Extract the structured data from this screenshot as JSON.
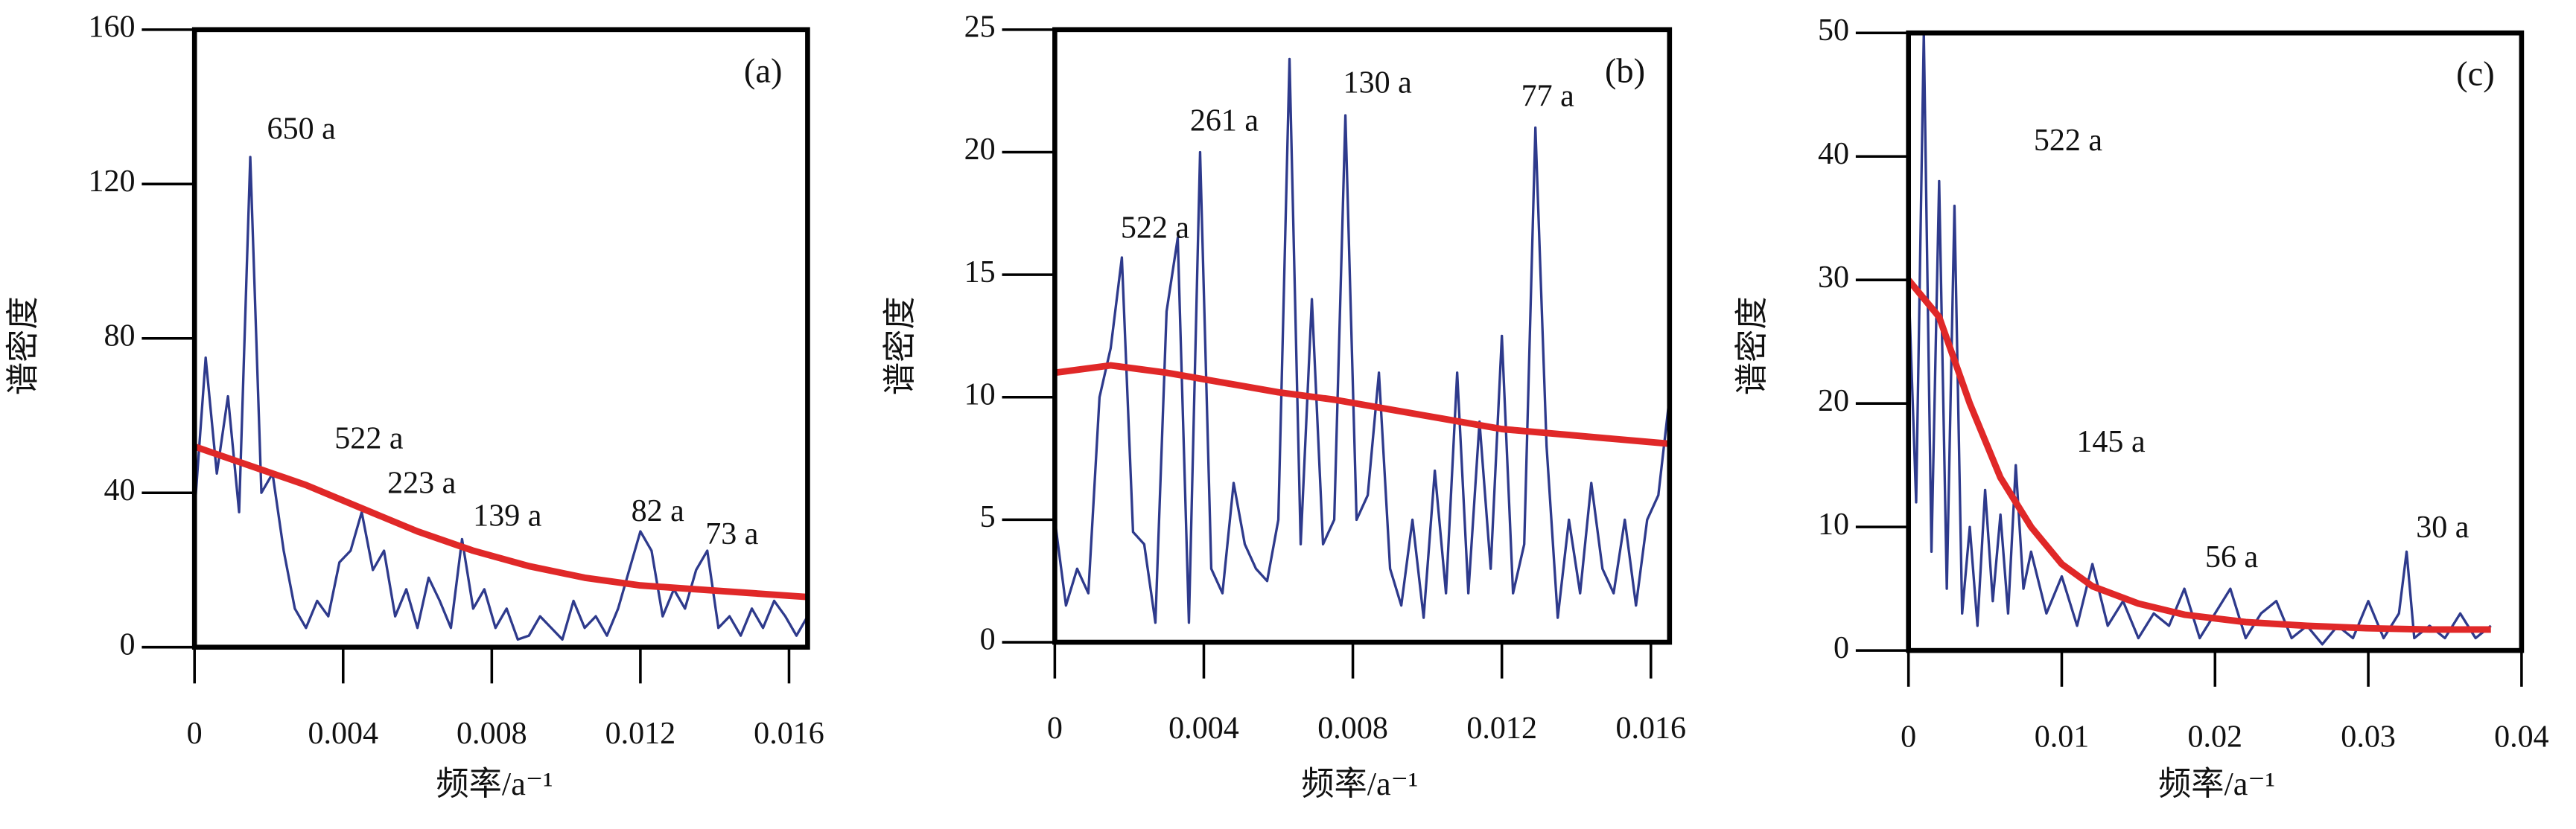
{
  "chart_data": [
    {
      "type": "line",
      "panel_label": "(a)",
      "xlabel": "频率/a⁻¹",
      "ylabel": "谱密度",
      "xlim": [
        0,
        0.0165
      ],
      "xticks": [
        0,
        0.004,
        0.008,
        0.012,
        0.016
      ],
      "ylim": [
        0,
        160
      ],
      "yticks": [
        0,
        40,
        80,
        120,
        160
      ],
      "annotations": [
        "650 a",
        "522 a",
        "223 a",
        "139 a",
        "82 a",
        "73 a"
      ],
      "series": [
        {
          "color": "#2e3a8c",
          "x": [
            0,
            0.0003,
            0.0006,
            0.0009,
            0.0012,
            0.0015,
            0.0018,
            0.0021,
            0.0024,
            0.0027,
            0.003,
            0.0033,
            0.0036,
            0.0039,
            0.0042,
            0.0045,
            0.0048,
            0.0051,
            0.0054,
            0.0057,
            0.006,
            0.0063,
            0.0066,
            0.0069,
            0.0072,
            0.0075,
            0.0078,
            0.0081,
            0.0084,
            0.0087,
            0.009,
            0.0093,
            0.0096,
            0.0099,
            0.0102,
            0.0105,
            0.0108,
            0.0111,
            0.0114,
            0.0117,
            0.012,
            0.0123,
            0.0126,
            0.0129,
            0.0132,
            0.0135,
            0.0138,
            0.0141,
            0.0144,
            0.0147,
            0.015,
            0.0153,
            0.0156,
            0.0159,
            0.0162,
            0.0165
          ],
          "values": [
            35,
            75,
            45,
            65,
            35,
            127,
            40,
            45,
            25,
            10,
            5,
            12,
            8,
            22,
            25,
            35,
            20,
            25,
            8,
            15,
            5,
            18,
            12,
            5,
            28,
            10,
            15,
            5,
            10,
            2,
            3,
            8,
            5,
            2,
            12,
            5,
            8,
            3,
            10,
            20,
            30,
            25,
            8,
            15,
            10,
            20,
            25,
            5,
            8,
            3,
            10,
            5,
            12,
            8,
            3,
            8
          ]
        },
        {
          "color": "#e02828",
          "x": [
            0,
            0.0015,
            0.003,
            0.0045,
            0.006,
            0.0075,
            0.009,
            0.0105,
            0.012,
            0.0135,
            0.015,
            0.0165
          ],
          "values": [
            52,
            47,
            42,
            36,
            30,
            25,
            21,
            18,
            16,
            15,
            14,
            13
          ]
        }
      ]
    },
    {
      "type": "line",
      "panel_label": "(b)",
      "xlabel": "频率/a⁻¹",
      "ylabel": "谱密度",
      "xlim": [
        0,
        0.0165
      ],
      "xticks": [
        0,
        0.004,
        0.008,
        0.012,
        0.016
      ],
      "ylim": [
        0,
        25
      ],
      "yticks": [
        0,
        5,
        10,
        15,
        20,
        25
      ],
      "annotations": [
        "522 a",
        "261 a",
        "130 a",
        "77 a"
      ],
      "series": [
        {
          "color": "#2e3a8c",
          "x": [
            0,
            0.0003,
            0.0006,
            0.0009,
            0.0012,
            0.0015,
            0.0018,
            0.0021,
            0.0024,
            0.0027,
            0.003,
            0.0033,
            0.0036,
            0.0039,
            0.0042,
            0.0045,
            0.0048,
            0.0051,
            0.0054,
            0.0057,
            0.006,
            0.0063,
            0.0066,
            0.0069,
            0.0072,
            0.0075,
            0.0078,
            0.0081,
            0.0084,
            0.0087,
            0.009,
            0.0093,
            0.0096,
            0.0099,
            0.0102,
            0.0105,
            0.0108,
            0.0111,
            0.0114,
            0.0117,
            0.012,
            0.0123,
            0.0126,
            0.0129,
            0.0132,
            0.0135,
            0.0138,
            0.0141,
            0.0144,
            0.0147,
            0.015,
            0.0153,
            0.0156,
            0.0159,
            0.0162,
            0.0165
          ],
          "values": [
            5,
            1.5,
            3,
            2,
            10,
            12,
            15.7,
            4.5,
            4,
            0.8,
            13.5,
            16.5,
            0.8,
            20,
            3,
            2,
            6.5,
            4,
            3,
            2.5,
            5,
            23.8,
            4,
            14,
            4,
            5,
            21.5,
            5,
            6,
            11,
            3,
            1.5,
            5,
            1,
            7,
            2,
            11,
            2,
            9,
            3,
            12.5,
            2,
            4,
            21,
            8,
            1,
            5,
            2,
            6.5,
            3,
            2,
            5,
            1.5,
            5,
            6,
            10
          ]
        },
        {
          "color": "#e02828",
          "x": [
            0,
            0.0015,
            0.003,
            0.0045,
            0.006,
            0.0075,
            0.009,
            0.0105,
            0.012,
            0.0135,
            0.015,
            0.0165
          ],
          "values": [
            11,
            11.3,
            11,
            10.6,
            10.2,
            9.9,
            9.5,
            9.1,
            8.7,
            8.5,
            8.3,
            8.1
          ]
        }
      ]
    },
    {
      "type": "line",
      "panel_label": "(c)",
      "xlabel": "频率/a⁻¹",
      "ylabel": "谱密度",
      "xlim": [
        0,
        0.04
      ],
      "xticks": [
        0,
        0.01,
        0.02,
        0.03,
        0.04
      ],
      "ylim": [
        0,
        50
      ],
      "yticks": [
        0,
        10,
        20,
        30,
        40,
        50
      ],
      "annotations": [
        "522 a",
        "145 a",
        "56 a",
        "30 a"
      ],
      "series": [
        {
          "color": "#2e3a8c",
          "x": [
            0,
            0.0005,
            0.001,
            0.0015,
            0.002,
            0.0025,
            0.003,
            0.0035,
            0.004,
            0.0045,
            0.005,
            0.0055,
            0.006,
            0.0065,
            0.007,
            0.0075,
            0.008,
            0.009,
            0.01,
            0.011,
            0.012,
            0.013,
            0.014,
            0.015,
            0.016,
            0.017,
            0.018,
            0.019,
            0.02,
            0.021,
            0.022,
            0.023,
            0.024,
            0.025,
            0.026,
            0.027,
            0.028,
            0.029,
            0.03,
            0.031,
            0.032,
            0.0325,
            0.033,
            0.034,
            0.035,
            0.036,
            0.037,
            0.038
          ],
          "values": [
            30,
            12,
            50,
            8,
            38,
            5,
            36,
            3,
            10,
            2,
            13,
            4,
            11,
            3,
            15,
            5,
            8,
            3,
            6,
            2,
            7,
            2,
            4,
            1,
            3,
            2,
            5,
            1,
            3,
            5,
            1,
            3,
            4,
            1,
            2,
            0.5,
            2,
            1,
            4,
            1,
            3,
            8,
            1,
            2,
            1,
            3,
            1,
            2
          ]
        },
        {
          "color": "#e02828",
          "x": [
            0,
            0.002,
            0.004,
            0.006,
            0.008,
            0.01,
            0.012,
            0.015,
            0.018,
            0.022,
            0.026,
            0.03,
            0.034,
            0.038
          ],
          "values": [
            30,
            27,
            20,
            14,
            10,
            7,
            5.2,
            3.8,
            2.9,
            2.3,
            2,
            1.8,
            1.7,
            1.7
          ]
        }
      ]
    }
  ]
}
